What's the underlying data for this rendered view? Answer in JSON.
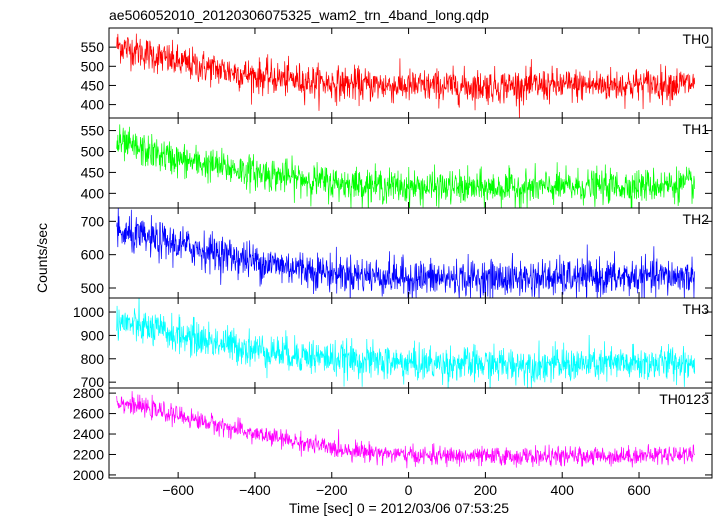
{
  "chart_data": {
    "type": "line",
    "title": "ae506052010_20120306075325_wam2_trn_4band_long.qdp",
    "xlabel": "Time [sec] 0 = 2012/03/06 07:53:25",
    "ylabel": "Counts/sec",
    "xlim": [
      -780,
      790
    ],
    "x_ticks": [
      -600,
      -400,
      -200,
      0,
      200,
      400,
      600
    ],
    "x_range": [
      -760,
      745
    ],
    "grid": false,
    "panels": [
      {
        "name": "TH0",
        "color": "#ff0000",
        "ylim": [
          365,
          600
        ],
        "y_ticks": [
          400,
          450,
          500,
          550
        ],
        "trend": {
          "x": [
            -760,
            -600,
            -400,
            -200,
            0,
            200,
            400,
            600,
            745
          ],
          "y": [
            555,
            510,
            475,
            455,
            448,
            448,
            450,
            452,
            455
          ]
        },
        "noise_sd": 22
      },
      {
        "name": "TH1",
        "color": "#00ff00",
        "ylim": [
          365,
          580
        ],
        "y_ticks": [
          400,
          450,
          500,
          550
        ],
        "trend": {
          "x": [
            -760,
            -600,
            -400,
            -200,
            0,
            200,
            400,
            600,
            745
          ],
          "y": [
            520,
            480,
            450,
            425,
            415,
            412,
            415,
            418,
            422
          ]
        },
        "noise_sd": 20
      },
      {
        "name": "TH2",
        "color": "#0000ff",
        "ylim": [
          470,
          740
        ],
        "y_ticks": [
          500,
          600,
          700
        ],
        "trend": {
          "x": [
            -760,
            -600,
            -400,
            -200,
            0,
            200,
            400,
            600,
            745
          ],
          "y": [
            665,
            630,
            580,
            545,
            530,
            528,
            530,
            532,
            535
          ]
        },
        "noise_sd": 28
      },
      {
        "name": "TH3",
        "color": "#00ffff",
        "ylim": [
          675,
          1060
        ],
        "y_ticks": [
          700,
          800,
          900,
          1000
        ],
        "trend": {
          "x": [
            -760,
            -600,
            -400,
            -200,
            0,
            200,
            400,
            600,
            745
          ],
          "y": [
            960,
            900,
            840,
            800,
            780,
            775,
            775,
            778,
            785
          ]
        },
        "noise_sd": 38
      },
      {
        "name": "TH0123",
        "color": "#ff00ff",
        "ylim": [
          1970,
          2850
        ],
        "y_ticks": [
          2000,
          2200,
          2400,
          2600,
          2800
        ],
        "trend": {
          "x": [
            -760,
            -600,
            -400,
            -200,
            0,
            200,
            400,
            600,
            745
          ],
          "y": [
            2720,
            2580,
            2400,
            2260,
            2190,
            2180,
            2180,
            2190,
            2210
          ]
        },
        "noise_sd": 45
      }
    ]
  }
}
